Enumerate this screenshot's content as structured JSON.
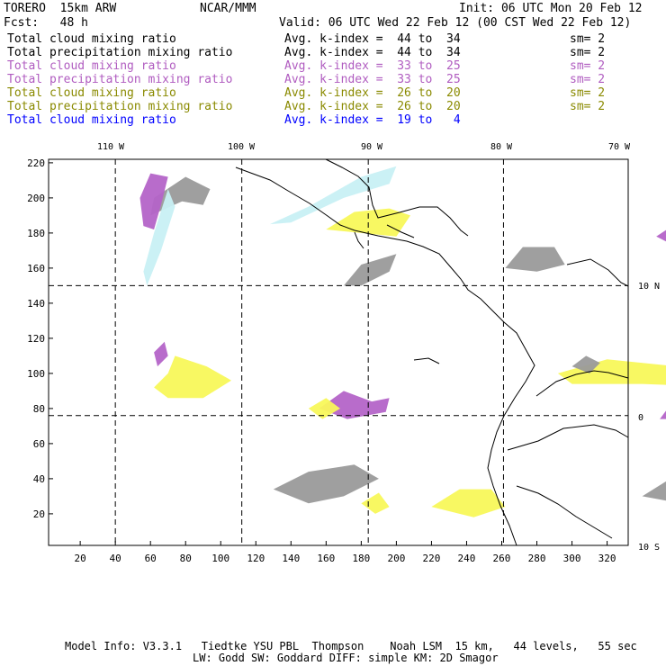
{
  "header": {
    "model": "TORERO  15km ARW",
    "org": "NCAR/MMM",
    "init": "Init: 06 UTC Mon 20 Feb 12",
    "fcst": "Fcst:   48 h",
    "valid": "Valid: 06 UTC Wed 22 Feb 12 (00 CST Wed 22 Feb 12)"
  },
  "legend": [
    {
      "field": "Total cloud mixing ratio",
      "index": "Avg. k-index =  44 to  34",
      "sm": "sm= 2",
      "color": "#000000"
    },
    {
      "field": "Total precipitation mixing ratio",
      "index": "Avg. k-index =  44 to  34",
      "sm": "sm= 2",
      "color": "#000000"
    },
    {
      "field": "Total cloud mixing ratio",
      "index": "Avg. k-index =  33 to  25",
      "sm": "sm= 2",
      "color": "#b05cc0"
    },
    {
      "field": "Total precipitation mixing ratio",
      "index": "Avg. k-index =  33 to  25",
      "sm": "sm= 2",
      "color": "#b05cc0"
    },
    {
      "field": "Total cloud mixing ratio",
      "index": "Avg. k-index =  26 to  20",
      "sm": "sm= 2",
      "color": "#8a8a00"
    },
    {
      "field": "Total precipitation mixing ratio",
      "index": "Avg. k-index =  26 to  20",
      "sm": "sm= 2",
      "color": "#8a8a00"
    },
    {
      "field": "Total cloud mixing ratio",
      "index": "Avg. k-index =  19 to   4",
      "sm": "",
      "color": "#0000ff"
    }
  ],
  "map": {
    "lon_labels": [
      "110 W",
      "100 W",
      "90 W",
      "80 W",
      "70 W"
    ],
    "lat_labels": [
      "10 N",
      "0",
      "10 S"
    ],
    "x_ticks": [
      "20",
      "40",
      "60",
      "80",
      "100",
      "120",
      "140",
      "160",
      "180",
      "200",
      "220",
      "240",
      "260",
      "280",
      "300",
      "320"
    ],
    "y_ticks": [
      "20",
      "40",
      "60",
      "80",
      "100",
      "120",
      "140",
      "160",
      "180",
      "200",
      "220"
    ]
  },
  "footer": {
    "line1": "Model Info: V3.3.1   Tiedtke YSU PBL  Thompson    Noah LSM  15 km,   44 levels,   55 sec",
    "line2": "LW: Godd SW: Goddard DIFF: simple KM: 2D Smagor"
  },
  "colors": {
    "gray": "#9a9a9a",
    "purple": "#b464c8",
    "yellow": "#f8f85a",
    "cyan": "#c8f0f4"
  }
}
